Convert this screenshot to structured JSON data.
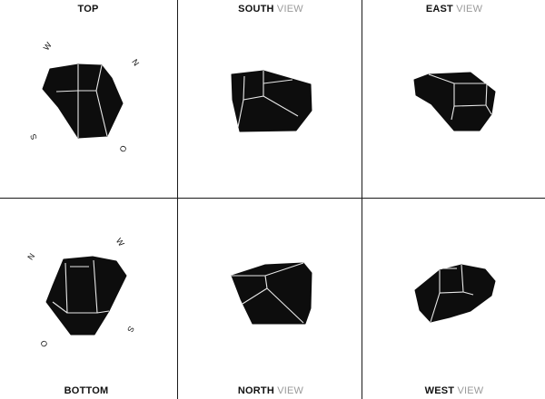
{
  "panels": {
    "top": {
      "title_strong": "TOP",
      "title_light": ""
    },
    "south": {
      "title_strong": "SOUTH",
      "title_light": " VIEW"
    },
    "east": {
      "title_strong": "EAST",
      "title_light": " VIEW"
    },
    "bottom": {
      "title_strong": "BOTTOM",
      "title_light": ""
    },
    "north": {
      "title_strong": "NORTH",
      "title_light": " VIEW"
    },
    "west": {
      "title_strong": "WEST",
      "title_light": " VIEW"
    }
  },
  "compass_top": {
    "w": "W",
    "n": "N",
    "s": "S",
    "o": "O"
  },
  "compass_bottom": {
    "n": "N",
    "w": "W",
    "o": "O",
    "s": "S"
  },
  "colors": {
    "solid": "#0d0d0d",
    "edges": "#e8e8e8",
    "grid": "#1a1a1a",
    "view_word": "#9a9a9a"
  }
}
